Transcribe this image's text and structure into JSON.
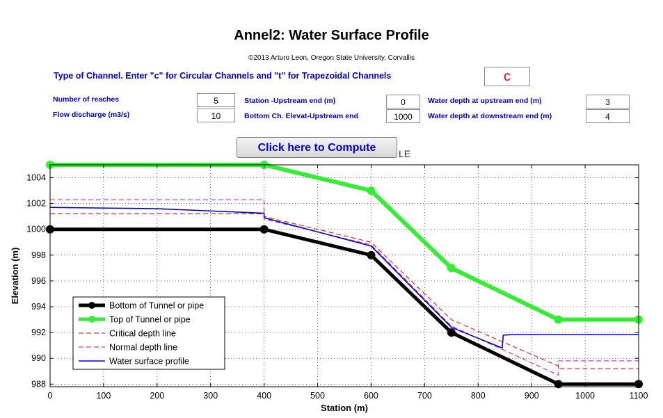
{
  "header": {
    "title": "Annel2: Water Surface Profile",
    "copyright": "©2013 Arturo Leon, Oregon State University, Corvallis"
  },
  "form": {
    "channel_type_label": "Type of Channel. Enter \"c\" for Circular Channels and \"t\" for Trapezoidal Channels",
    "channel_type_value": "c",
    "reaches_label": "Number of reaches",
    "reaches_value": "5",
    "discharge_label": "Flow discharge (m3/s)",
    "discharge_value": "10",
    "station_upstream_label": "Station -Upstream end (m)",
    "station_upstream_value": "0",
    "bottom_elev_label": "Bottom Ch. Elevat-Upstream end",
    "bottom_elev_value": "1000",
    "depth_upstream_label": "Water depth at upstream end (m)",
    "depth_upstream_value": "3",
    "depth_downstream_label": "Water depth at downstream end (m)",
    "depth_downstream_value": "4"
  },
  "compute_button": {
    "label": "Click here to Compute"
  },
  "le_text": "LE",
  "chart_data": {
    "type": "line",
    "title": "",
    "xlabel": "Station (m)",
    "ylabel": "Elevation (m)",
    "xlim": [
      0,
      1100
    ],
    "ylim": [
      987.8,
      1005
    ],
    "xticks": [
      0,
      100,
      200,
      300,
      400,
      500,
      600,
      700,
      800,
      900,
      1000,
      1100
    ],
    "yticks": [
      988,
      990,
      992,
      994,
      996,
      998,
      1000,
      1002,
      1004
    ],
    "grid": true,
    "legend_position": "bottom-left",
    "series": [
      {
        "name": "Bottom of Tunnel or pipe",
        "color": "#000000",
        "style": "solid-marker",
        "x": [
          0,
          400,
          600,
          750,
          950,
          1100
        ],
        "y": [
          1000,
          1000,
          998,
          992,
          988,
          988
        ]
      },
      {
        "name": "Top of Tunnel or pipe",
        "color": "#33ee33",
        "style": "solid-marker",
        "x": [
          0,
          400,
          600,
          750,
          950,
          1100
        ],
        "y": [
          1005,
          1005,
          1003,
          997,
          993,
          993
        ]
      },
      {
        "name": "Critical depth line",
        "color": "#dd0000",
        "style": "dashed",
        "x": [
          0,
          400,
          400,
          600,
          750,
          950,
          950,
          1100
        ],
        "y": [
          1001.2,
          1001.2,
          1001.0,
          999.0,
          993.0,
          989.4,
          989.2,
          989.2
        ]
      },
      {
        "name": "Normal depth line",
        "color": "#cc00cc",
        "style": "dashed",
        "x": [
          0,
          400,
          400,
          600,
          750,
          950,
          950,
          1100
        ],
        "y": [
          1002.3,
          1002.3,
          1000.8,
          998.8,
          992.5,
          988.7,
          989.8,
          989.8
        ]
      },
      {
        "name": "Water surface profile",
        "color": "#0000cc",
        "style": "solid",
        "x": [
          0,
          200,
          400,
          400,
          600,
          750,
          845,
          847,
          870,
          1100
        ],
        "y": [
          1001.7,
          1001.6,
          1001.25,
          1000.9,
          998.7,
          992.4,
          990.8,
          991.8,
          991.85,
          991.85
        ]
      }
    ]
  }
}
